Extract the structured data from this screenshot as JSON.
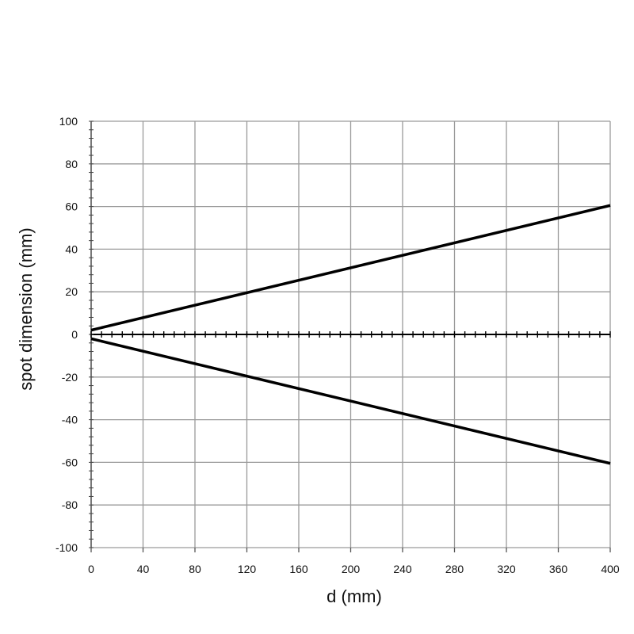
{
  "chart_data": {
    "type": "line",
    "title": "",
    "xlabel": "d (mm)",
    "ylabel": "spot dimension (mm)",
    "xlim": [
      0,
      400
    ],
    "ylim": [
      -100,
      100
    ],
    "x_ticks": [
      0,
      40,
      80,
      120,
      160,
      200,
      240,
      280,
      320,
      360,
      400
    ],
    "y_ticks": [
      -100,
      -80,
      -60,
      -40,
      -20,
      0,
      20,
      40,
      60,
      80,
      100
    ],
    "x_tick_labels": [
      "0",
      "40",
      "80",
      "120",
      "160",
      "200",
      "240",
      "280",
      "320",
      "360",
      "400"
    ],
    "y_tick_labels": [
      "-100",
      "-80",
      "-60",
      "-40",
      "-20",
      "0",
      "20",
      "40",
      "60",
      "80",
      "100"
    ],
    "grid": true,
    "legend": "none",
    "series": [
      {
        "x": [
          0,
          400
        ],
        "y": [
          2,
          60.5
        ],
        "color": "#000000"
      },
      {
        "x": [
          0,
          400
        ],
        "y": [
          -2,
          -60.5
        ],
        "color": "#000000"
      }
    ]
  }
}
